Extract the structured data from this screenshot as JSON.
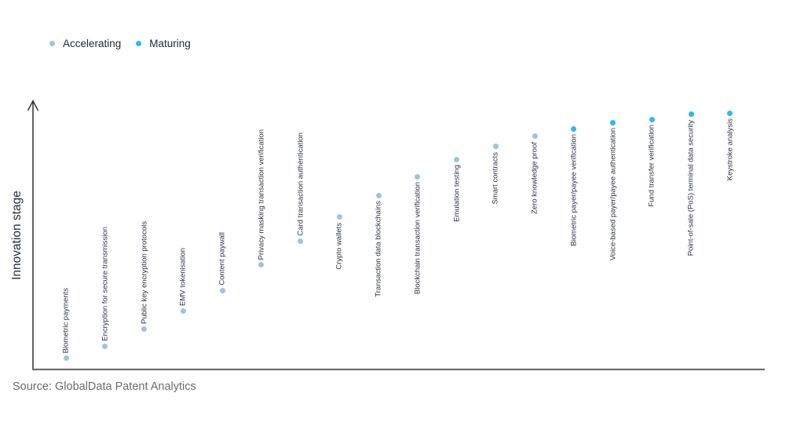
{
  "legend": {
    "items": [
      {
        "label": "Accelerating",
        "color": "#9CC5DD"
      },
      {
        "label": "Maturing",
        "color": "#2EB8F1"
      }
    ]
  },
  "source": {
    "text": "Source: GlobalData Patent Analytics"
  },
  "chart_data": {
    "type": "scatter",
    "title": "",
    "xlabel": "",
    "ylabel": "Innovation stage",
    "y_axis": {
      "range": [
        0,
        100
      ],
      "ticks_visible": false,
      "arrow": true
    },
    "x_axis": {
      "type": "ordinal",
      "ticks_visible": false
    },
    "legend_position": "top-left",
    "legend_entries": [
      "Accelerating",
      "Maturing"
    ],
    "points": [
      {
        "label": "Biometric payments",
        "stage": "Accelerating",
        "value": 4.1,
        "label_position": "above"
      },
      {
        "label": "Encryption for secure transmission",
        "stage": "Accelerating",
        "value": 8.5,
        "label_position": "above"
      },
      {
        "label": "Public key encryption protocols",
        "stage": "Accelerating",
        "value": 14.9,
        "label_position": "above"
      },
      {
        "label": "EMV tokenisation",
        "stage": "Accelerating",
        "value": 21.6,
        "label_position": "above"
      },
      {
        "label": "Content paywall",
        "stage": "Accelerating",
        "value": 29.2,
        "label_position": "above"
      },
      {
        "label": "Privacy masking transaction verification",
        "stage": "Accelerating",
        "value": 38.8,
        "label_position": "above"
      },
      {
        "label": "Card transaction authentication",
        "stage": "Accelerating",
        "value": 47.8,
        "label_position": "above"
      },
      {
        "label": "Crypto wallets",
        "stage": "Accelerating",
        "value": 56.6,
        "label_position": "below"
      },
      {
        "label": "Transaction data blockchains",
        "stage": "Accelerating",
        "value": 64.7,
        "label_position": "below"
      },
      {
        "label": "Blockchain transaction verification",
        "stage": "Accelerating",
        "value": 71.7,
        "label_position": "below"
      },
      {
        "label": "Emulation testing",
        "stage": "Accelerating",
        "value": 78.1,
        "label_position": "below"
      },
      {
        "label": "Smart contracts",
        "stage": "Accelerating",
        "value": 82.8,
        "label_position": "below"
      },
      {
        "label": "Zero knowledge proof",
        "stage": "Accelerating",
        "value": 86.6,
        "label_position": "below"
      },
      {
        "label": "Biometric payer/payee verification",
        "stage": "Maturing",
        "value": 89.5,
        "label_position": "below"
      },
      {
        "label": "Voice-based payer/payee authentication",
        "stage": "Maturing",
        "value": 91.8,
        "label_position": "below"
      },
      {
        "label": "Fund transfer verification",
        "stage": "Maturing",
        "value": 93.0,
        "label_position": "below"
      },
      {
        "label": "Point-of-sale (PoS) terminal data security",
        "stage": "Maturing",
        "value": 94.8,
        "label_position": "below"
      },
      {
        "label": "Keystroke analysis",
        "stage": "Maturing",
        "value": 95.3,
        "label_position": "below"
      }
    ]
  }
}
